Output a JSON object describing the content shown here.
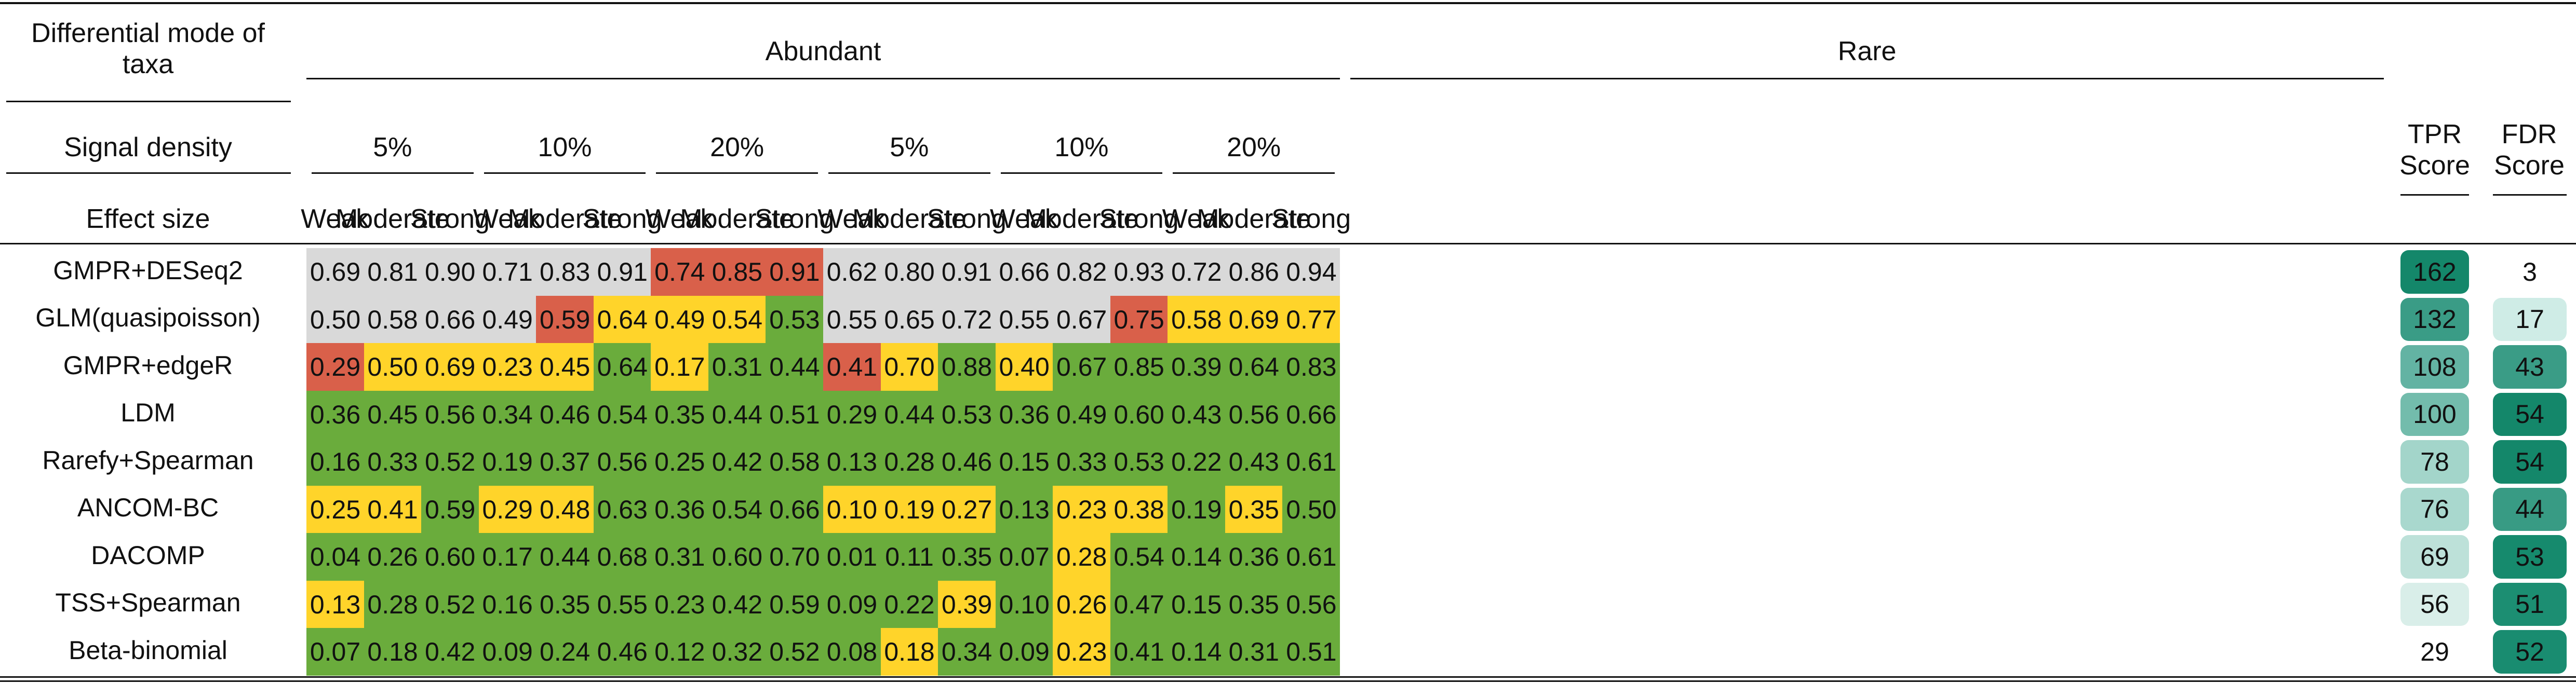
{
  "header": {
    "mode_label_line1": "Differential mode of",
    "mode_label_line2": "taxa",
    "abundant": "Abundant",
    "rare": "Rare",
    "signal_density_label": "Signal density",
    "densities": [
      "5%",
      "10%",
      "20%",
      "5%",
      "10%",
      "20%"
    ],
    "effect_size_label": "Effect size",
    "effect_sizes": [
      "Weak",
      "Moderate",
      "Strong"
    ],
    "tpr_line1": "TPR",
    "tpr_line2": "Score",
    "fdr_line1": "FDR",
    "fdr_line2": "Score"
  },
  "colors": {
    "grey": "#d9d9d9",
    "red": "#d9604a",
    "yellow": "#ffd42a",
    "green": "#6aac3c"
  },
  "rows": [
    {
      "method": "GMPR+DESeq2",
      "values": [
        "0.69",
        "0.81",
        "0.90",
        "0.71",
        "0.83",
        "0.91",
        "0.74",
        "0.85",
        "0.91",
        "0.62",
        "0.80",
        "0.91",
        "0.66",
        "0.82",
        "0.93",
        "0.72",
        "0.86",
        "0.94"
      ],
      "colors": [
        "grey",
        "grey",
        "grey",
        "grey",
        "grey",
        "grey",
        "red",
        "red",
        "red",
        "grey",
        "grey",
        "grey",
        "grey",
        "grey",
        "grey",
        "grey",
        "grey",
        "grey"
      ],
      "tpr": "162",
      "tpr_color": "#14876a",
      "fdr": "3",
      "fdr_color": "#ffffff"
    },
    {
      "method": "GLM(quasipoisson)",
      "values": [
        "0.50",
        "0.58",
        "0.66",
        "0.49",
        "0.59",
        "0.64",
        "0.49",
        "0.54",
        "0.53",
        "0.55",
        "0.65",
        "0.72",
        "0.55",
        "0.67",
        "0.75",
        "0.58",
        "0.69",
        "0.77"
      ],
      "colors": [
        "grey",
        "grey",
        "grey",
        "grey",
        "red",
        "yellow",
        "yellow",
        "yellow",
        "green",
        "grey",
        "grey",
        "grey",
        "grey",
        "grey",
        "red",
        "yellow",
        "yellow",
        "yellow"
      ],
      "tpr": "132",
      "tpr_color": "#3a9c86",
      "fdr": "17",
      "fdr_color": "#cfece6"
    },
    {
      "method": "GMPR+edgeR",
      "values": [
        "0.29",
        "0.50",
        "0.69",
        "0.23",
        "0.45",
        "0.64",
        "0.17",
        "0.31",
        "0.44",
        "0.41",
        "0.70",
        "0.88",
        "0.40",
        "0.67",
        "0.85",
        "0.39",
        "0.64",
        "0.83"
      ],
      "colors": [
        "red",
        "yellow",
        "yellow",
        "yellow",
        "yellow",
        "green",
        "yellow",
        "green",
        "green",
        "red",
        "yellow",
        "green",
        "yellow",
        "green",
        "green",
        "green",
        "green",
        "green"
      ],
      "tpr": "108",
      "tpr_color": "#63b3a3",
      "fdr": "43",
      "fdr_color": "#3a9c86"
    },
    {
      "method": "LDM",
      "values": [
        "0.36",
        "0.45",
        "0.56",
        "0.34",
        "0.46",
        "0.54",
        "0.35",
        "0.44",
        "0.51",
        "0.29",
        "0.44",
        "0.53",
        "0.36",
        "0.49",
        "0.60",
        "0.43",
        "0.56",
        "0.66"
      ],
      "colors": [
        "green",
        "green",
        "green",
        "green",
        "green",
        "green",
        "green",
        "green",
        "green",
        "green",
        "green",
        "green",
        "green",
        "green",
        "green",
        "green",
        "green",
        "green"
      ],
      "tpr": "100",
      "tpr_color": "#73bcac",
      "fdr": "54",
      "fdr_color": "#14876a"
    },
    {
      "method": "Rarefy+Spearman",
      "values": [
        "0.16",
        "0.33",
        "0.52",
        "0.19",
        "0.37",
        "0.56",
        "0.25",
        "0.42",
        "0.58",
        "0.13",
        "0.28",
        "0.46",
        "0.15",
        "0.33",
        "0.53",
        "0.22",
        "0.43",
        "0.61"
      ],
      "colors": [
        "green",
        "green",
        "green",
        "green",
        "green",
        "green",
        "green",
        "green",
        "green",
        "green",
        "green",
        "green",
        "green",
        "green",
        "green",
        "green",
        "green",
        "green"
      ],
      "tpr": "78",
      "tpr_color": "#a3d5ca",
      "fdr": "54",
      "fdr_color": "#14876a"
    },
    {
      "method": "ANCOM-BC",
      "values": [
        "0.25",
        "0.41",
        "0.59",
        "0.29",
        "0.48",
        "0.63",
        "0.36",
        "0.54",
        "0.66",
        "0.10",
        "0.19",
        "0.27",
        "0.13",
        "0.23",
        "0.38",
        "0.19",
        "0.35",
        "0.50"
      ],
      "colors": [
        "yellow",
        "yellow",
        "green",
        "yellow",
        "yellow",
        "green",
        "green",
        "green",
        "green",
        "yellow",
        "yellow",
        "yellow",
        "green",
        "yellow",
        "yellow",
        "green",
        "yellow",
        "green"
      ],
      "tpr": "76",
      "tpr_color": "#a9d8ce",
      "fdr": "44",
      "fdr_color": "#389b84"
    },
    {
      "method": "DACOMP",
      "values": [
        "0.04",
        "0.26",
        "0.60",
        "0.17",
        "0.44",
        "0.68",
        "0.31",
        "0.60",
        "0.70",
        "0.01",
        "0.11",
        "0.35",
        "0.07",
        "0.28",
        "0.54",
        "0.14",
        "0.36",
        "0.61"
      ],
      "colors": [
        "green",
        "green",
        "green",
        "green",
        "green",
        "green",
        "green",
        "green",
        "green",
        "green",
        "green",
        "green",
        "green",
        "yellow",
        "green",
        "green",
        "green",
        "green"
      ],
      "tpr": "69",
      "tpr_color": "#bde1d9",
      "fdr": "53",
      "fdr_color": "#168a6d"
    },
    {
      "method": "TSS+Spearman",
      "values": [
        "0.13",
        "0.28",
        "0.52",
        "0.16",
        "0.35",
        "0.55",
        "0.23",
        "0.42",
        "0.59",
        "0.09",
        "0.22",
        "0.39",
        "0.10",
        "0.26",
        "0.47",
        "0.15",
        "0.35",
        "0.56"
      ],
      "colors": [
        "yellow",
        "green",
        "green",
        "green",
        "green",
        "green",
        "green",
        "green",
        "green",
        "green",
        "green",
        "yellow",
        "green",
        "yellow",
        "green",
        "green",
        "green",
        "green"
      ],
      "tpr": "56",
      "tpr_color": "#d9eee9",
      "fdr": "51",
      "fdr_color": "#1c8e72"
    },
    {
      "method": "Beta-binomial",
      "values": [
        "0.07",
        "0.18",
        "0.42",
        "0.09",
        "0.24",
        "0.46",
        "0.12",
        "0.32",
        "0.52",
        "0.08",
        "0.18",
        "0.34",
        "0.09",
        "0.23",
        "0.41",
        "0.14",
        "0.31",
        "0.51"
      ],
      "colors": [
        "green",
        "green",
        "green",
        "green",
        "green",
        "green",
        "green",
        "green",
        "green",
        "green",
        "yellow",
        "green",
        "green",
        "yellow",
        "green",
        "green",
        "green",
        "green"
      ],
      "tpr": "29",
      "tpr_color": "#ffffff",
      "fdr": "52",
      "fdr_color": "#198c70"
    }
  ]
}
